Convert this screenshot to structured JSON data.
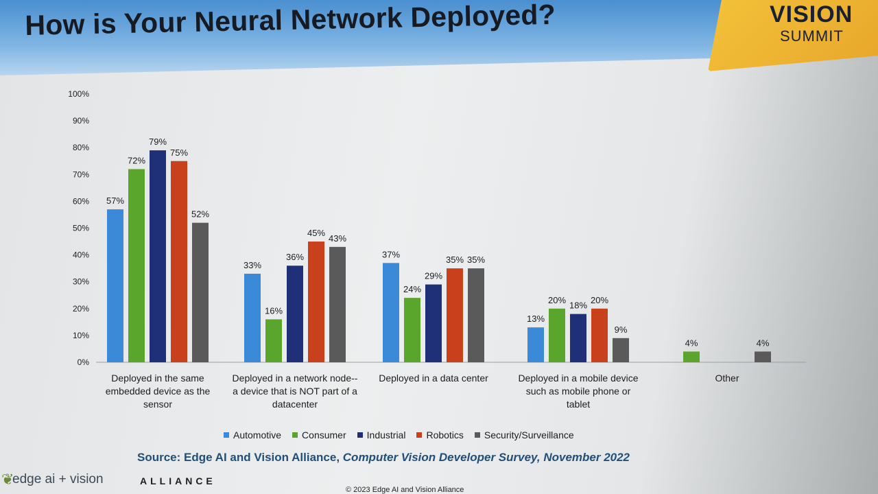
{
  "title": "How is Your Neural Network Deployed?",
  "logo": {
    "line1": "VISION",
    "line2": "SUMMIT"
  },
  "source": {
    "prefix": "Source: Edge AI and Vision Alliance, ",
    "italic": "Computer Vision Developer Survey, November 2022"
  },
  "footer": {
    "brand": "edge ai + vision",
    "alliance": "ALLIANCE",
    "copyright": "© 2023 Edge AI and Vision Alliance"
  },
  "colors": {
    "Automotive": "#3a8ad8",
    "Consumer": "#5aa52c",
    "Industrial": "#1f2f78",
    "Robotics": "#c9401c",
    "Security/Surveillance": "#5a5a5a"
  },
  "chart_data": {
    "type": "bar",
    "ylim": [
      0,
      100
    ],
    "yticks": [
      "0%",
      "10%",
      "20%",
      "30%",
      "40%",
      "50%",
      "60%",
      "70%",
      "80%",
      "90%",
      "100%"
    ],
    "grid": false,
    "legend": "bottom",
    "categories": [
      [
        "Deployed in the same",
        "embedded device as the",
        "sensor"
      ],
      [
        "Deployed in a network node--",
        "a device that is NOT part of a",
        "datacenter"
      ],
      [
        "Deployed in a data center"
      ],
      [
        "Deployed in a mobile device",
        "such as mobile phone or",
        "tablet"
      ],
      [
        "Other"
      ]
    ],
    "series": [
      {
        "name": "Automotive",
        "values": [
          57,
          33,
          37,
          13,
          null
        ]
      },
      {
        "name": "Consumer",
        "values": [
          72,
          16,
          24,
          20,
          4
        ]
      },
      {
        "name": "Industrial",
        "values": [
          79,
          36,
          29,
          18,
          null
        ]
      },
      {
        "name": "Robotics",
        "values": [
          75,
          45,
          35,
          20,
          null
        ]
      },
      {
        "name": "Security/Surveillance",
        "values": [
          52,
          43,
          35,
          9,
          4
        ]
      }
    ]
  }
}
